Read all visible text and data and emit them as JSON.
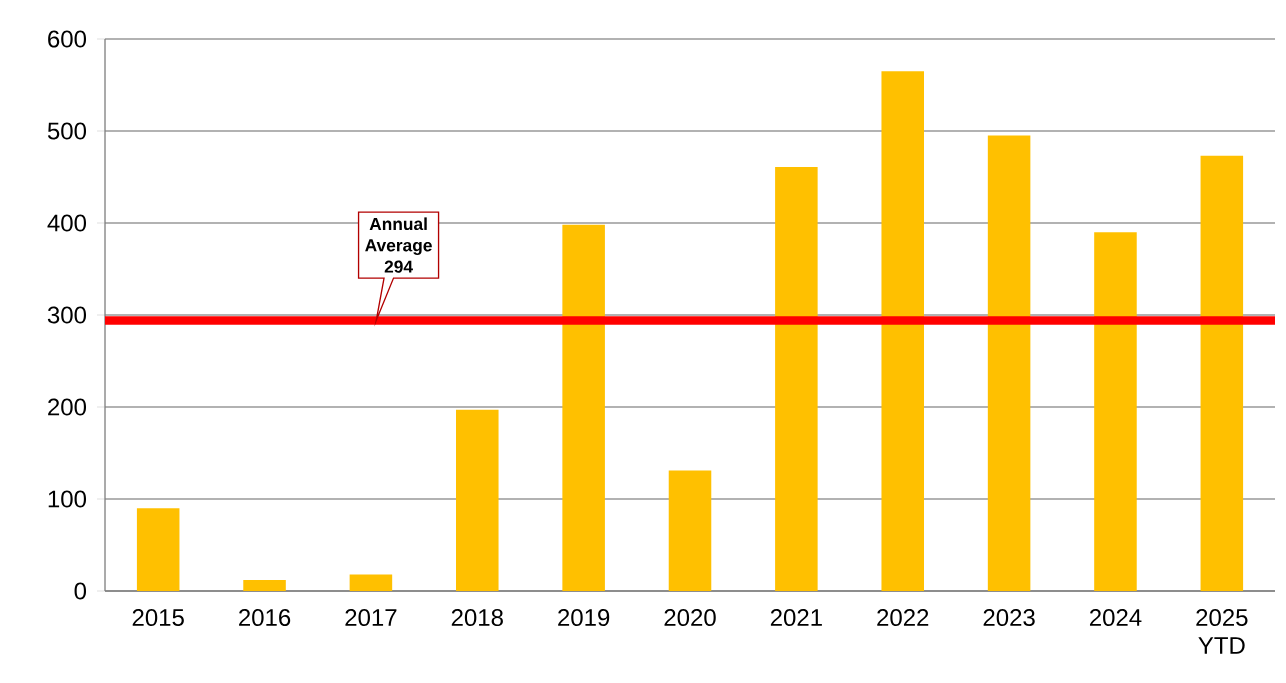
{
  "chart_data": {
    "type": "bar",
    "categories": [
      "2015",
      "2016",
      "2017",
      "2018",
      "2019",
      "2020",
      "2021",
      "2022",
      "2023",
      "2024",
      "2025 YTD"
    ],
    "values": [
      90,
      12,
      18,
      197,
      398,
      131,
      461,
      565,
      495,
      390,
      473
    ],
    "color": "#ffc000",
    "ylim": [
      0,
      600
    ],
    "yticks": [
      0,
      100,
      200,
      300,
      400,
      500,
      600
    ],
    "grid": "y",
    "ref_lines": [
      {
        "axis": "y",
        "value": 294,
        "label": "Annual Average 294",
        "color": "#ff0000"
      }
    ]
  }
}
